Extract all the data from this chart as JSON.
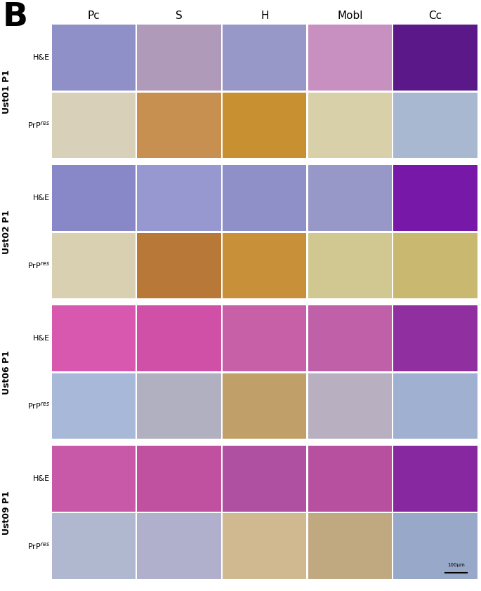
{
  "panel_label": "B",
  "col_labels": [
    "Pc",
    "S",
    "H",
    "Mobl",
    "Cc"
  ],
  "groups": [
    {
      "label": "Ust01 P1",
      "rows": [
        {
          "stain": "H&E",
          "colors": [
            "#9090c8",
            "#b09aba",
            "#9898c8",
            "#c890c0",
            "#5a1888"
          ]
        },
        {
          "stain": "PrPres",
          "colors": [
            "#d8d0b8",
            "#c89050",
            "#c89030",
            "#d8d0a8",
            "#a8b8d0"
          ]
        }
      ]
    },
    {
      "label": "Ust02 P1",
      "rows": [
        {
          "stain": "H&E",
          "colors": [
            "#8888c8",
            "#9898d0",
            "#9090c8",
            "#9898c8",
            "#7818a8"
          ]
        },
        {
          "stain": "PrPres",
          "colors": [
            "#d8d0b0",
            "#b87838",
            "#c89038",
            "#d0c890",
            "#c8b870"
          ]
        }
      ]
    },
    {
      "label": "Ust06 P1",
      "rows": [
        {
          "stain": "H&E",
          "colors": [
            "#d858b0",
            "#d050a8",
            "#c860a8",
            "#c060a8",
            "#9030a0"
          ]
        },
        {
          "stain": "PrPres",
          "colors": [
            "#a8b8d8",
            "#b0b0c0",
            "#c0a068",
            "#b8b0c0",
            "#a0b0d0"
          ]
        }
      ]
    },
    {
      "label": "Ust09 P1",
      "rows": [
        {
          "stain": "H&E",
          "colors": [
            "#c858a8",
            "#c050a0",
            "#b050a0",
            "#b850a0",
            "#8828a0"
          ]
        },
        {
          "stain": "PrPres",
          "colors": [
            "#b0b8d0",
            "#b0b0cc",
            "#d0b890",
            "#c0a880",
            "#98a8c8"
          ]
        }
      ]
    }
  ],
  "scalebar_text": "100μm",
  "bg_color": "#ffffff",
  "panel_label_fontsize": 34,
  "col_label_fontsize": 11,
  "stain_label_fontsize": 8,
  "group_label_fontsize": 9
}
